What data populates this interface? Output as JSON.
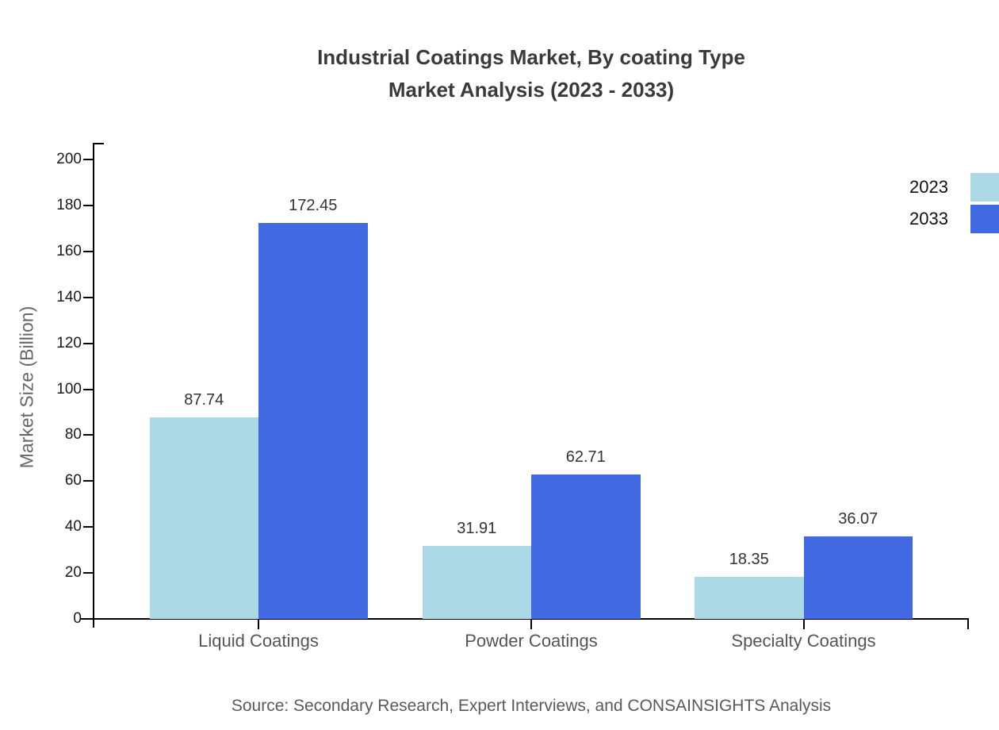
{
  "title": {
    "line1": "Industrial Coatings Market, By coating Type",
    "line2": "Market Analysis (2023 - 2033)"
  },
  "y_axis": {
    "label": "Market Size (Billion)"
  },
  "legend": [
    {
      "label": "2023",
      "color": "#ADD8E6"
    },
    {
      "label": "2033",
      "color": "#4169E1"
    }
  ],
  "source": "Source: Secondary Research, Expert Interviews, and CONSAINSIGHTS Analysis",
  "chart_data": {
    "type": "bar",
    "title": "Industrial Coatings Market, By coating Type Market Analysis (2023 - 2033)",
    "categories": [
      "Liquid Coatings",
      "Powder Coatings",
      "Specialty Coatings"
    ],
    "series": [
      {
        "name": "2023",
        "color": "#ADD8E6",
        "values": [
          87.74,
          31.91,
          18.35
        ]
      },
      {
        "name": "2033",
        "color": "#4169E1",
        "values": [
          172.45,
          62.71,
          36.07
        ]
      }
    ],
    "xlabel": "",
    "ylabel": "Market Size (Billion)",
    "ylim": [
      0,
      200
    ],
    "ytick_step": 20,
    "grid": false,
    "legend_position": "upper right",
    "value_labels": true
  }
}
